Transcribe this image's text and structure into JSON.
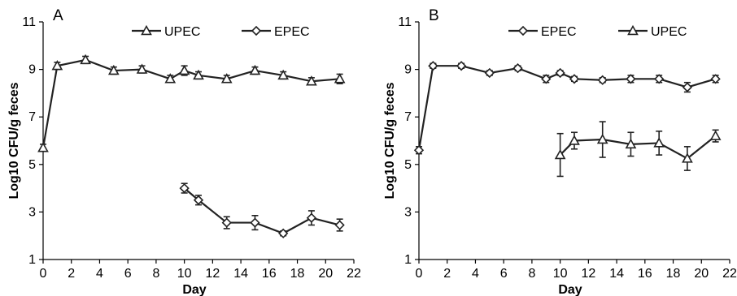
{
  "chart_data": [
    {
      "type": "line",
      "panel_label": "A",
      "xlabel": "Day",
      "ylabel": "Log10 CFU/g feces",
      "xlim": [
        0,
        22
      ],
      "ylim": [
        1,
        11
      ],
      "xticks": [
        0,
        2,
        4,
        6,
        8,
        10,
        12,
        14,
        16,
        18,
        20,
        22
      ],
      "yticks": [
        1,
        3,
        5,
        7,
        9,
        11
      ],
      "grid": false,
      "legend": [
        "UPEC",
        "EPEC"
      ],
      "legend_position": "top",
      "series": [
        {
          "name": "UPEC",
          "marker": "triangle",
          "points": [
            {
              "x": 0,
              "y": 5.7,
              "err": 0.15
            },
            {
              "x": 1,
              "y": 9.15,
              "err": 0.15
            },
            {
              "x": 3,
              "y": 9.4,
              "err": 0.15
            },
            {
              "x": 5,
              "y": 8.95,
              "err": 0.15
            },
            {
              "x": 7,
              "y": 9.0,
              "err": 0.15
            },
            {
              "x": 9,
              "y": 8.6,
              "err": 0.15
            },
            {
              "x": 10,
              "y": 8.95,
              "err": 0.2
            },
            {
              "x": 11,
              "y": 8.75,
              "err": 0.15
            },
            {
              "x": 13,
              "y": 8.6,
              "err": 0.15
            },
            {
              "x": 15,
              "y": 8.95,
              "err": 0.15
            },
            {
              "x": 17,
              "y": 8.75,
              "err": 0.15
            },
            {
              "x": 19,
              "y": 8.5,
              "err": 0.15
            },
            {
              "x": 21,
              "y": 8.6,
              "err": 0.2
            }
          ]
        },
        {
          "name": "EPEC",
          "marker": "diamond",
          "points": [
            {
              "x": 10,
              "y": 4.0,
              "err": 0.2
            },
            {
              "x": 11,
              "y": 3.5,
              "err": 0.2
            },
            {
              "x": 13,
              "y": 2.55,
              "err": 0.25
            },
            {
              "x": 15,
              "y": 2.55,
              "err": 0.3
            },
            {
              "x": 17,
              "y": 2.1,
              "err": 0.1
            },
            {
              "x": 19,
              "y": 2.75,
              "err": 0.3
            },
            {
              "x": 21,
              "y": 2.45,
              "err": 0.25
            }
          ]
        }
      ]
    },
    {
      "type": "line",
      "panel_label": "B",
      "xlabel": "Day",
      "ylabel": "Log10 CFU/g feces",
      "xlim": [
        0,
        22
      ],
      "ylim": [
        1,
        11
      ],
      "xticks": [
        0,
        2,
        4,
        6,
        8,
        10,
        12,
        14,
        16,
        18,
        20,
        22
      ],
      "yticks": [
        1,
        3,
        5,
        7,
        9,
        11
      ],
      "grid": false,
      "legend": [
        "EPEC",
        "UPEC"
      ],
      "legend_position": "top",
      "series": [
        {
          "name": "EPEC",
          "marker": "diamond",
          "points": [
            {
              "x": 0,
              "y": 5.6,
              "err": 0.15
            },
            {
              "x": 1,
              "y": 9.15,
              "err": 0.1
            },
            {
              "x": 3,
              "y": 9.15,
              "err": 0.1
            },
            {
              "x": 5,
              "y": 8.85,
              "err": 0.1
            },
            {
              "x": 7,
              "y": 9.05,
              "err": 0.1
            },
            {
              "x": 9,
              "y": 8.6,
              "err": 0.15
            },
            {
              "x": 10,
              "y": 8.85,
              "err": 0.1
            },
            {
              "x": 11,
              "y": 8.6,
              "err": 0.1
            },
            {
              "x": 13,
              "y": 8.55,
              "err": 0.1
            },
            {
              "x": 15,
              "y": 8.6,
              "err": 0.15
            },
            {
              "x": 17,
              "y": 8.6,
              "err": 0.15
            },
            {
              "x": 19,
              "y": 8.25,
              "err": 0.2
            },
            {
              "x": 21,
              "y": 8.6,
              "err": 0.15
            }
          ]
        },
        {
          "name": "UPEC",
          "marker": "triangle",
          "points": [
            {
              "x": 10,
              "y": 5.4,
              "err": 0.9
            },
            {
              "x": 11,
              "y": 6.0,
              "err": 0.35
            },
            {
              "x": 13,
              "y": 6.05,
              "err": 0.75
            },
            {
              "x": 15,
              "y": 5.85,
              "err": 0.5
            },
            {
              "x": 17,
              "y": 5.9,
              "err": 0.5
            },
            {
              "x": 19,
              "y": 5.25,
              "err": 0.5
            },
            {
              "x": 21,
              "y": 6.2,
              "err": 0.25
            }
          ]
        }
      ]
    }
  ]
}
